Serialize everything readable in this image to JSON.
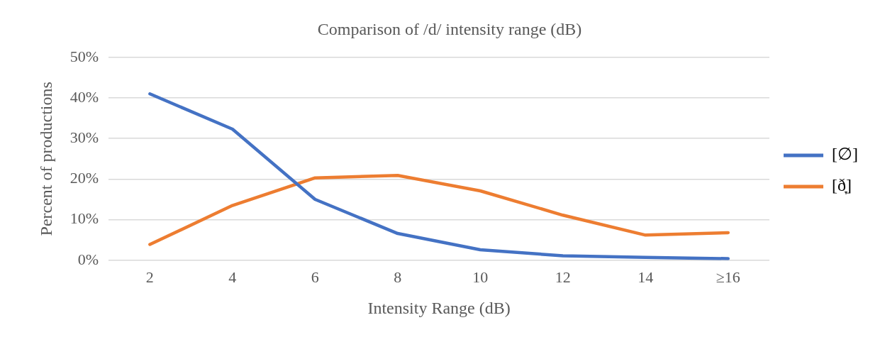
{
  "chart_data": {
    "type": "line",
    "title": "Comparison of /d/ intensity range (dB)",
    "xlabel": "Intensity Range (dB)",
    "ylabel": "Percent of productions",
    "categories": [
      "2",
      "4",
      "6",
      "8",
      "10",
      "12",
      "14",
      "≥16"
    ],
    "series": [
      {
        "name": "[∅]",
        "color": "#4472c4",
        "values": [
          41.0,
          32.3,
          15.0,
          6.6,
          2.6,
          1.1,
          0.7,
          0.4
        ]
      },
      {
        "name": "[ð̞]",
        "color": "#ed7d31",
        "values": [
          3.9,
          13.5,
          20.3,
          20.9,
          17.1,
          11.1,
          6.2,
          6.8
        ]
      }
    ],
    "ylim": [
      0,
      50
    ],
    "yticks": [
      {
        "value": 0,
        "label": "0%"
      },
      {
        "value": 10,
        "label": "10%"
      },
      {
        "value": 20,
        "label": "20%"
      },
      {
        "value": 30,
        "label": "30%"
      },
      {
        "value": 40,
        "label": "40%"
      },
      {
        "value": 50,
        "label": "50%"
      }
    ],
    "grid": "y",
    "legend": "right",
    "marker": "none",
    "line_style": "solid"
  }
}
